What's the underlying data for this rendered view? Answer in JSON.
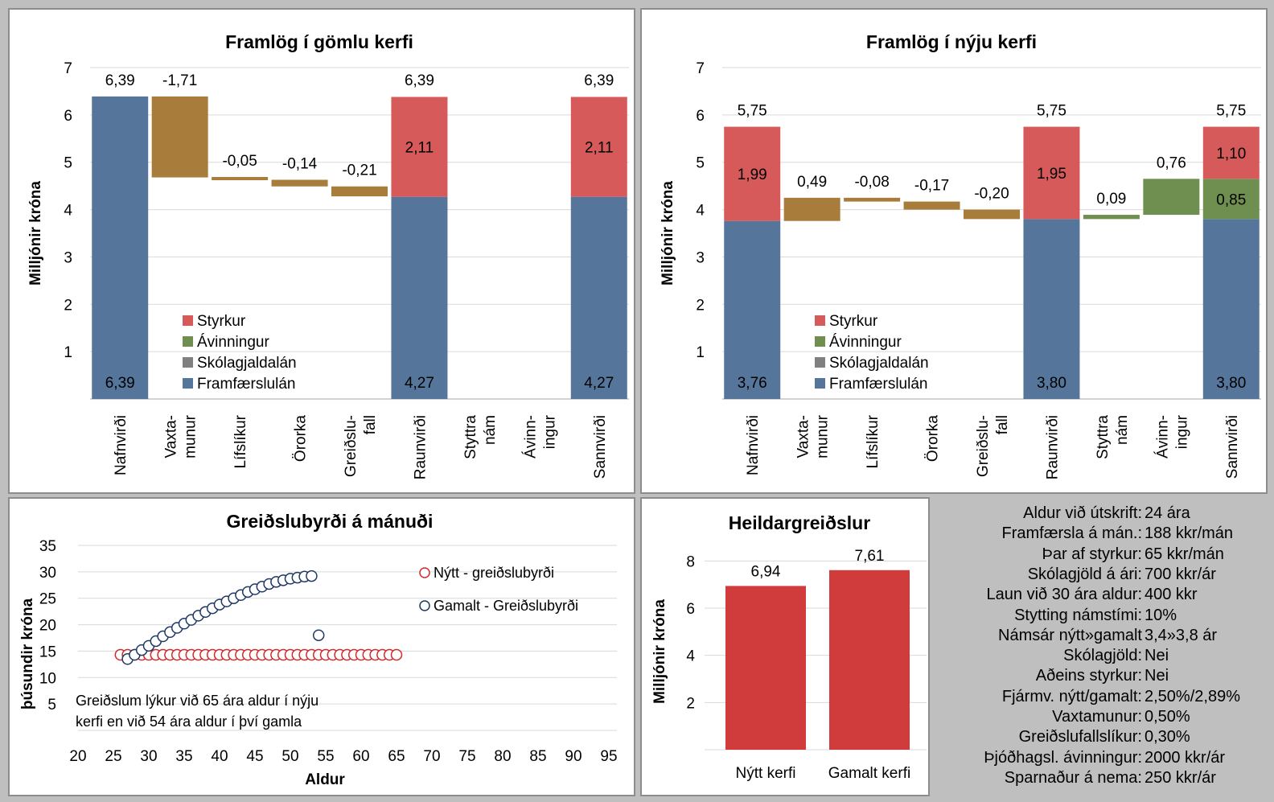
{
  "colors": {
    "styrkur": "#d65a5a",
    "avinningur": "#6e8f50",
    "skolagjaldalan": "#808080",
    "framfaerslulan": "#55769a",
    "waterfall": "#a87c3a",
    "heildar": "#d03c3c",
    "nytt_marker": "#d22b2b",
    "gamalt_marker": "#1f3864"
  },
  "chart_data": [
    {
      "id": "old",
      "type": "bar",
      "subtype": "waterfall-stacked",
      "title": "Framlög í gömlu kerfi",
      "ylabel": "Milljónir króna",
      "ylim": [
        0,
        7
      ],
      "yticks": [
        "1",
        "2",
        "3",
        "4",
        "5",
        "6",
        "7"
      ],
      "categories": [
        "Nafnvirði",
        "Vaxta-\nmunur",
        "Lífslíkur",
        "Örorka",
        "Greiðslu-\nfall",
        "Raunvirði",
        "Styttra\nnám",
        "Ávinn-\ningur",
        "Sannvirði"
      ],
      "legend": [
        "Styrkur",
        "Ávinningur",
        "Skólagjaldalán",
        "Framfærslulán"
      ],
      "legend_position": "inside-left",
      "bars": [
        {
          "kind": "total",
          "framfaerslulan": 6.39,
          "styrkur": 0,
          "avinningur": 0,
          "total": 6.39,
          "total_label": "6,39",
          "fram_label": "6,39"
        },
        {
          "kind": "delta",
          "from": 6.39,
          "to": 4.68,
          "label": "-1,71"
        },
        {
          "kind": "delta",
          "from": 4.68,
          "to": 4.63,
          "label": "-0,05"
        },
        {
          "kind": "delta",
          "from": 4.63,
          "to": 4.49,
          "label": "-0,14"
        },
        {
          "kind": "delta",
          "from": 4.49,
          "to": 4.28,
          "label": "-0,21"
        },
        {
          "kind": "total",
          "framfaerslulan": 4.27,
          "styrkur": 2.11,
          "avinningur": 0,
          "total": 6.39,
          "total_label": "6,39",
          "fram_label": "4,27",
          "styrkur_label": "2,11"
        },
        {
          "kind": "empty"
        },
        {
          "kind": "empty"
        },
        {
          "kind": "total",
          "framfaerslulan": 4.27,
          "styrkur": 2.11,
          "avinningur": 0,
          "total": 6.39,
          "total_label": "6,39",
          "fram_label": "4,27",
          "styrkur_label": "2,11"
        }
      ]
    },
    {
      "id": "new",
      "type": "bar",
      "subtype": "waterfall-stacked",
      "title": "Framlög í nýju kerfi",
      "ylabel": "Milljónir króna",
      "ylim": [
        0,
        7
      ],
      "yticks": [
        "1",
        "2",
        "3",
        "4",
        "5",
        "6",
        "7"
      ],
      "categories": [
        "Nafnvirði",
        "Vaxta-\nmunur",
        "Lífslíkur",
        "Örorka",
        "Greiðslu-\nfall",
        "Raunvirði",
        "Styttra\nnám",
        "Ávinn-\ningur",
        "Sannvirði"
      ],
      "legend": [
        "Styrkur",
        "Ávinningur",
        "Skólagjaldalán",
        "Framfærslulán"
      ],
      "legend_position": "inside-left",
      "bars": [
        {
          "kind": "total",
          "framfaerslulan": 3.76,
          "styrkur": 1.99,
          "avinningur": 0,
          "total": 5.75,
          "total_label": "5,75",
          "fram_label": "3,76",
          "styrkur_label": "1,99"
        },
        {
          "kind": "delta",
          "from": 3.76,
          "to": 4.25,
          "label": "0,49"
        },
        {
          "kind": "delta",
          "from": 4.25,
          "to": 4.17,
          "label": "-0,08"
        },
        {
          "kind": "delta",
          "from": 4.17,
          "to": 4.0,
          "label": "-0,17"
        },
        {
          "kind": "delta",
          "from": 4.0,
          "to": 3.8,
          "label": "-0,20"
        },
        {
          "kind": "total",
          "framfaerslulan": 3.8,
          "styrkur": 1.95,
          "avinningur": 0,
          "total": 5.75,
          "total_label": "5,75",
          "fram_label": "3,80",
          "styrkur_label": "1,95"
        },
        {
          "kind": "delta",
          "from": 3.8,
          "to": 3.89,
          "label": "0,09",
          "color": "green"
        },
        {
          "kind": "delta",
          "from": 3.89,
          "to": 4.65,
          "label": "0,76",
          "color": "green"
        },
        {
          "kind": "total",
          "framfaerslulan": 3.8,
          "avinningur": 0.85,
          "styrkur": 1.1,
          "total": 5.75,
          "total_label": "5,75",
          "fram_label": "3,80",
          "avin_label": "0,85",
          "styrkur_label": "1,10"
        }
      ]
    },
    {
      "id": "burden",
      "type": "scatter",
      "title": "Greiðslubyrði á mánuði",
      "xlabel": "Aldur",
      "ylabel": "þúsundir króna",
      "xlim": [
        20,
        95
      ],
      "ylim": [
        0,
        35
      ],
      "xticks": [
        "20",
        "25",
        "30",
        "35",
        "40",
        "45",
        "50",
        "55",
        "60",
        "65",
        "70",
        "75",
        "80",
        "85",
        "90",
        "95"
      ],
      "yticks": [
        "5",
        "10",
        "15",
        "20",
        "25",
        "30",
        "35"
      ],
      "annotation": [
        "Greiðslum lýkur við 65 ára aldur í nýju",
        "kerfi en við 54 ára aldur í því gamla"
      ],
      "series": [
        {
          "name": "Nýtt - greiðslubyrði",
          "x": [
            26,
            27,
            28,
            29,
            30,
            31,
            32,
            33,
            34,
            35,
            36,
            37,
            38,
            39,
            40,
            41,
            42,
            43,
            44,
            45,
            46,
            47,
            48,
            49,
            50,
            51,
            52,
            53,
            54,
            55,
            56,
            57,
            58,
            59,
            60,
            61,
            62,
            63,
            64,
            65
          ],
          "y": [
            14.3,
            14.3,
            14.3,
            14.3,
            14.3,
            14.3,
            14.3,
            14.3,
            14.3,
            14.3,
            14.3,
            14.3,
            14.3,
            14.3,
            14.3,
            14.3,
            14.3,
            14.3,
            14.3,
            14.3,
            14.3,
            14.3,
            14.3,
            14.3,
            14.3,
            14.3,
            14.3,
            14.3,
            14.3,
            14.3,
            14.3,
            14.3,
            14.3,
            14.3,
            14.3,
            14.3,
            14.3,
            14.3,
            14.3,
            14.3
          ]
        },
        {
          "name": "Gamalt - Greiðslubyrði",
          "x": [
            27,
            28,
            29,
            30,
            31,
            32,
            33,
            34,
            35,
            36,
            37,
            38,
            39,
            40,
            41,
            42,
            43,
            44,
            45,
            46,
            47,
            48,
            49,
            50,
            51,
            52,
            53,
            54
          ],
          "y": [
            13.5,
            14.3,
            15.2,
            16.0,
            16.9,
            17.8,
            18.6,
            19.4,
            20.2,
            20.9,
            21.7,
            22.4,
            23.1,
            23.8,
            24.4,
            25.0,
            25.6,
            26.2,
            26.7,
            27.2,
            27.7,
            28.1,
            28.4,
            28.7,
            28.9,
            29.1,
            29.2,
            18.0
          ]
        }
      ]
    },
    {
      "id": "total",
      "type": "bar",
      "title": "Heildargreiðslur",
      "ylabel": "Milljónir króna",
      "ylim": [
        0,
        9
      ],
      "yticks": [
        "2",
        "4",
        "6",
        "8"
      ],
      "categories": [
        "Nýtt kerfi",
        "Gamalt kerfi"
      ],
      "values": [
        6.94,
        7.61
      ],
      "value_labels": [
        "6,94",
        "7,61"
      ]
    }
  ],
  "info": [
    {
      "k": "Aldur við útskrift:",
      "v": "24 ára"
    },
    {
      "k": "Framfærsla á mán.:",
      "v": "188 kkr/mán"
    },
    {
      "k": "Þar af styrkur:",
      "v": "65 kkr/mán"
    },
    {
      "k": "Skólagjöld á ári:",
      "v": "700 kkr/ár"
    },
    {
      "k": "Laun við 30 ára aldur:",
      "v": "400 kkr"
    },
    {
      "k": "Stytting námstími:",
      "v": "10%"
    },
    {
      "k": "Námsár nýtt»gamalt",
      "v": "3,4»3,8 ár"
    },
    {
      "k": "Skólagjöld:",
      "v": "Nei"
    },
    {
      "k": "Aðeins styrkur:",
      "v": "Nei"
    },
    {
      "k": "Fjármv. nýtt/gamalt:",
      "v": "2,50%/2,89%"
    },
    {
      "k": "Vaxtamunur:",
      "v": "0,50%"
    },
    {
      "k": "Greiðslufallslíkur:",
      "v": "0,30%"
    },
    {
      "k": "Þjóðhagsl. ávinningur:",
      "v": "2000 kkr/ár"
    },
    {
      "k": "Sparnaður á nema:",
      "v": "250 kkr/ár"
    }
  ]
}
